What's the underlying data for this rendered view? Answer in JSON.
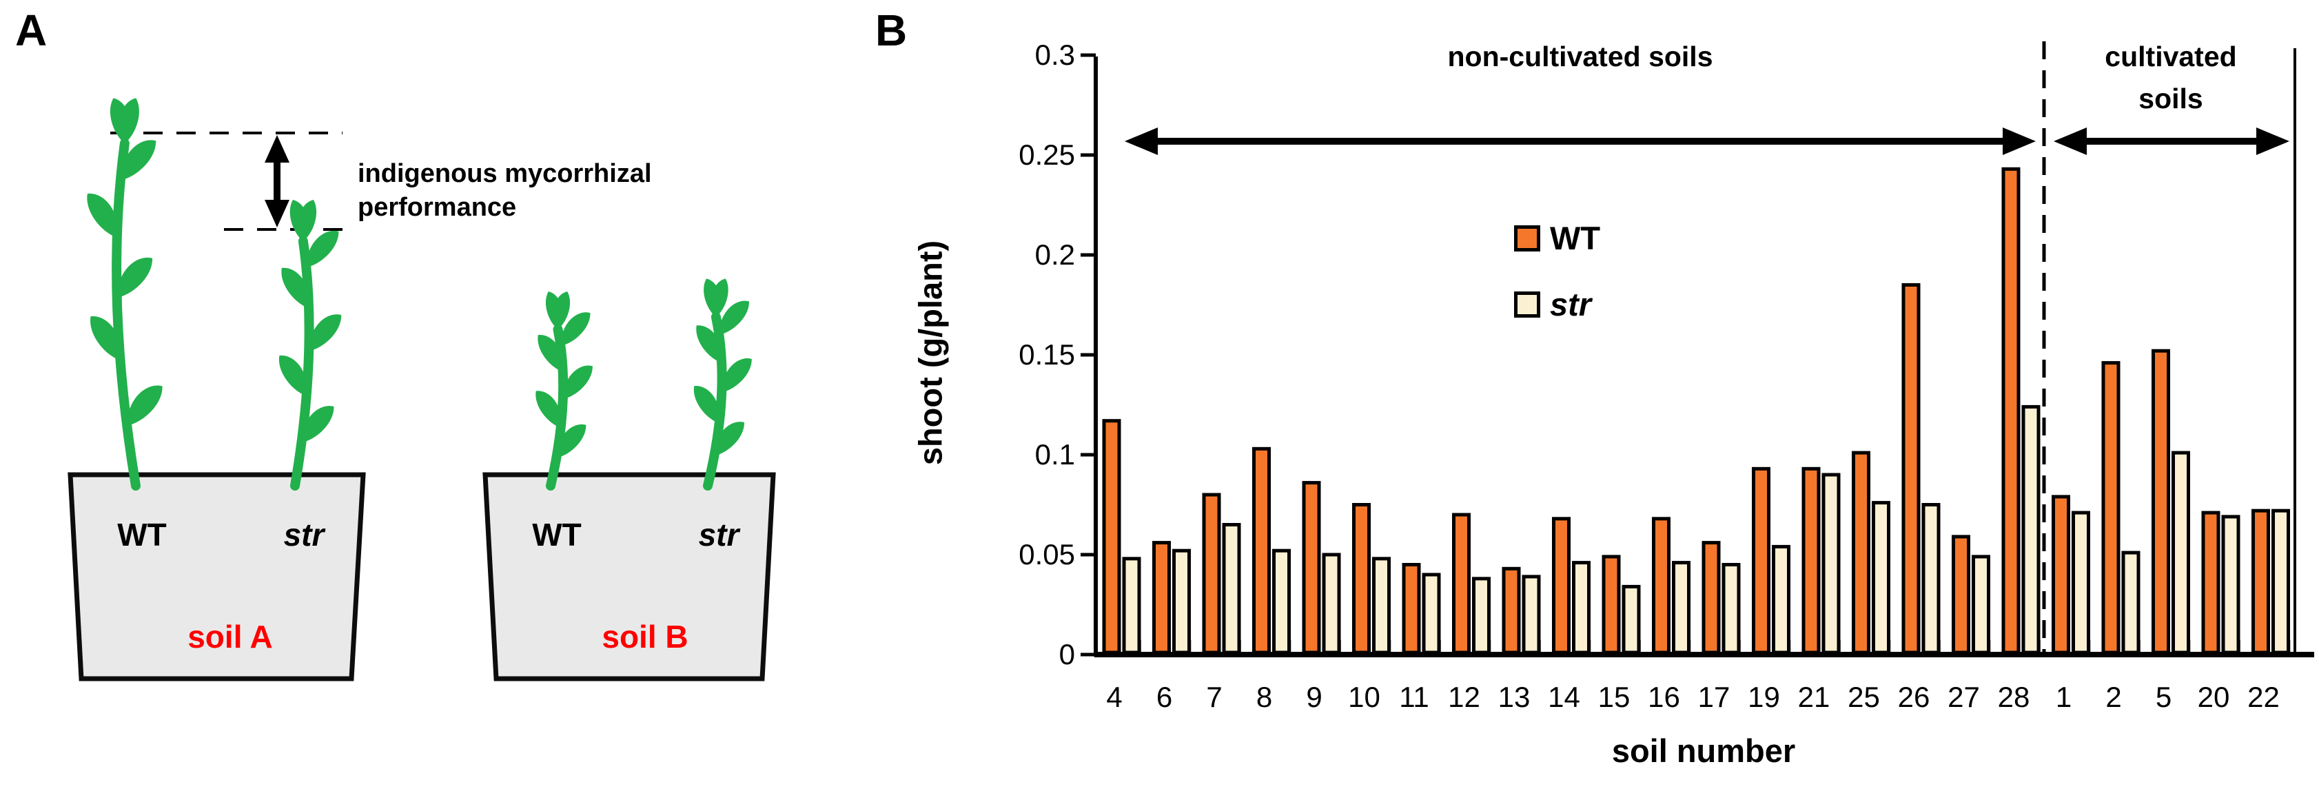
{
  "figure": {
    "panel_a": {
      "label": "A",
      "annotation": "indigenous mycorrhizal performance",
      "pot_a": {
        "soil_label": "soil A",
        "wt_label": "WT",
        "str_label": "str"
      },
      "pot_b": {
        "soil_label": "soil B",
        "wt_label": "WT",
        "str_label": "str"
      },
      "colors": {
        "plant_green": "#22B04C",
        "pot_fill": "#E9E9E9",
        "pot_border": "#0d0d0d",
        "soil_text_red": "#FF0000"
      }
    },
    "panel_b": {
      "label": "B",
      "section_labels": {
        "non_cultivated": "non-cultivated soils",
        "cultivated": "cultivated soils"
      },
      "legend": [
        {
          "label": "WT",
          "color": "#F5772B",
          "italic": false
        },
        {
          "label": "str",
          "color": "#FCF0D2",
          "italic": true
        }
      ]
    }
  },
  "chart_data": {
    "type": "bar",
    "title": "",
    "xlabel": "soil number",
    "ylabel": "shoot (g/plant)",
    "ylim": [
      0,
      0.3
    ],
    "grid": false,
    "legend_position": "inside-upper-left-of-plot",
    "y_tick_labels": [
      "0",
      "0.05",
      "0.1",
      "0.15",
      "0.2",
      "0.25",
      "0.3"
    ],
    "categories": [
      "4",
      "6",
      "7",
      "8",
      "9",
      "10",
      "11",
      "12",
      "13",
      "14",
      "15",
      "16",
      "17",
      "19",
      "21",
      "25",
      "26",
      "27",
      "28",
      "1",
      "2",
      "5",
      "20",
      "22"
    ],
    "section_split_after_category": "28",
    "sections": [
      {
        "label": "non-cultivated soils",
        "from": "4",
        "to": "28"
      },
      {
        "label": "cultivated soils",
        "from": "1",
        "to": "22"
      }
    ],
    "series": [
      {
        "name": "WT",
        "color": "#F5772B",
        "values": [
          0.117,
          0.056,
          0.08,
          0.103,
          0.086,
          0.075,
          0.045,
          0.07,
          0.043,
          0.068,
          0.049,
          0.068,
          0.056,
          0.093,
          0.093,
          0.101,
          0.185,
          0.059,
          0.243,
          0.079,
          0.146,
          0.152,
          0.071,
          0.072
        ]
      },
      {
        "name": "str",
        "color": "#FCF0D2",
        "values": [
          0.048,
          0.052,
          0.065,
          0.052,
          0.05,
          0.048,
          0.04,
          0.038,
          0.039,
          0.046,
          0.034,
          0.046,
          0.045,
          0.054,
          0.09,
          0.076,
          0.075,
          0.049,
          0.124,
          0.071,
          0.051,
          0.101,
          0.069,
          0.072
        ]
      }
    ]
  }
}
